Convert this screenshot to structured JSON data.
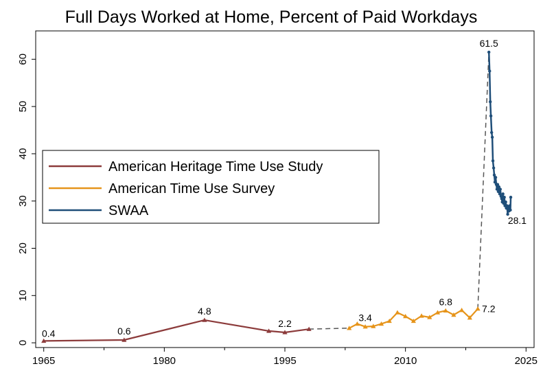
{
  "chart_data": {
    "type": "line",
    "title": "Full Days Worked at Home, Percent of Paid Workdays",
    "xlabel": "",
    "ylabel": "",
    "xlim": [
      1964,
      2026
    ],
    "ylim": [
      -1,
      66
    ],
    "x_ticks": [
      1965,
      1980,
      1995,
      2010,
      2025
    ],
    "x_minor_ticks": [
      1972.5,
      1987.5,
      2002.5,
      2017.5
    ],
    "y_ticks": [
      0,
      10,
      20,
      30,
      40,
      50,
      60
    ],
    "grid": false,
    "legend_position": "left",
    "colors": {
      "aht": "#8c3b3b",
      "atus": "#e6941a",
      "swaa": "#1f4e79",
      "connector": "#555555"
    },
    "series": [
      {
        "name": "American Heritage Time Use Study",
        "marker": "triangle",
        "points": [
          [
            1965,
            0.4
          ],
          [
            1975,
            0.6
          ],
          [
            1985,
            4.8
          ],
          [
            1993,
            2.5
          ],
          [
            1995,
            2.2
          ],
          [
            1998,
            2.9
          ]
        ]
      },
      {
        "name": "American Time Use Survey",
        "marker": "triangle",
        "points": [
          [
            2003,
            3.1
          ],
          [
            2004,
            4.0
          ],
          [
            2005,
            3.4
          ],
          [
            2006,
            3.5
          ],
          [
            2007,
            4.0
          ],
          [
            2008,
            4.6
          ],
          [
            2009,
            6.4
          ],
          [
            2010,
            5.6
          ],
          [
            2011,
            4.6
          ],
          [
            2012,
            5.7
          ],
          [
            2013,
            5.4
          ],
          [
            2014,
            6.4
          ],
          [
            2015,
            6.8
          ],
          [
            2016,
            5.9
          ],
          [
            2017,
            6.9
          ],
          [
            2018,
            5.3
          ],
          [
            2019,
            7.2
          ]
        ]
      },
      {
        "name": "SWAA",
        "marker": "dot",
        "points": [
          [
            2020.38,
            61.5
          ],
          [
            2020.47,
            57.5
          ],
          [
            2020.55,
            51.0
          ],
          [
            2020.63,
            48.0
          ],
          [
            2020.72,
            44.5
          ],
          [
            2020.8,
            43.5
          ],
          [
            2020.88,
            38.5
          ],
          [
            2020.97,
            37.0
          ],
          [
            2021.05,
            35.5
          ],
          [
            2021.13,
            34.0
          ],
          [
            2021.22,
            35.0
          ],
          [
            2021.3,
            33.5
          ],
          [
            2021.38,
            32.5
          ],
          [
            2021.47,
            33.5
          ],
          [
            2021.55,
            32.0
          ],
          [
            2021.63,
            33.0
          ],
          [
            2021.72,
            31.5
          ],
          [
            2021.8,
            32.5
          ],
          [
            2021.88,
            31.0
          ],
          [
            2021.97,
            30.5
          ],
          [
            2022.05,
            29.8
          ],
          [
            2022.13,
            31.5
          ],
          [
            2022.22,
            29.5
          ],
          [
            2022.3,
            30.8
          ],
          [
            2022.38,
            29.0
          ],
          [
            2022.47,
            29.8
          ],
          [
            2022.55,
            28.5
          ],
          [
            2022.63,
            29.0
          ],
          [
            2022.72,
            27.2
          ],
          [
            2022.8,
            28.6
          ],
          [
            2022.88,
            27.9
          ],
          [
            2022.97,
            29.0
          ],
          [
            2023.05,
            28.1
          ],
          [
            2023.1,
            30.8
          ]
        ]
      }
    ],
    "connectors": [
      [
        [
          1998,
          2.9
        ],
        [
          2003,
          3.1
        ]
      ],
      [
        [
          2019,
          7.2
        ],
        [
          2020.38,
          61.5
        ]
      ]
    ],
    "annotations": [
      {
        "x": 1965,
        "y": 0.4,
        "text": "0.4",
        "pos": "above-right"
      },
      {
        "x": 1975,
        "y": 0.6,
        "text": "0.6",
        "pos": "above"
      },
      {
        "x": 1985,
        "y": 4.8,
        "text": "4.8",
        "pos": "above"
      },
      {
        "x": 1995,
        "y": 2.2,
        "text": "2.2",
        "pos": "above"
      },
      {
        "x": 2005,
        "y": 3.4,
        "text": "3.4",
        "pos": "above"
      },
      {
        "x": 2015,
        "y": 6.8,
        "text": "6.8",
        "pos": "above"
      },
      {
        "x": 2019,
        "y": 7.2,
        "text": "7.2",
        "pos": "right"
      },
      {
        "x": 2020.38,
        "y": 61.5,
        "text": "61.5",
        "pos": "above"
      },
      {
        "x": 2023.05,
        "y": 28.1,
        "text": "28.1",
        "pos": "below"
      }
    ]
  }
}
